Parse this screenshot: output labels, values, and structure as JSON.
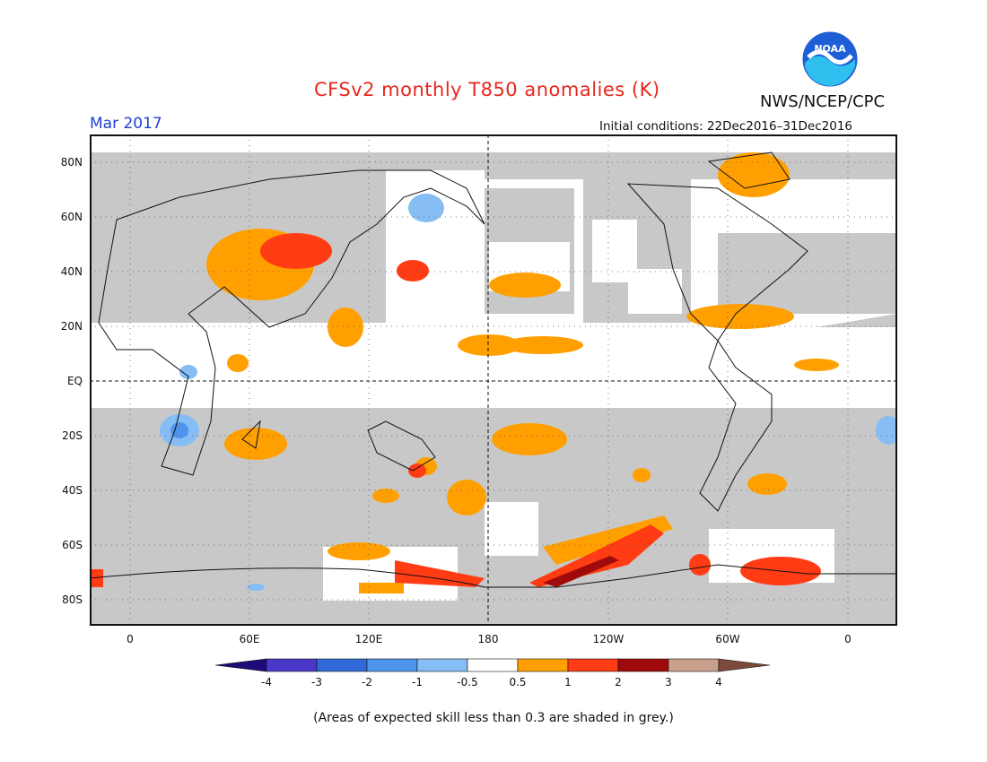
{
  "title": "CFSv2 monthly T850 anomalies (K)",
  "organization": "NWS/NCEP/CPC",
  "logo_text": "NOAA",
  "forecast_month": "Mar 2017",
  "initial_conditions": "Initial conditions: 22Dec2016–31Dec2016",
  "lat_labels": [
    "80N",
    "60N",
    "40N",
    "20N",
    "EQ",
    "20S",
    "40S",
    "60S",
    "80S"
  ],
  "lon_labels": [
    "0",
    "60E",
    "120E",
    "180",
    "120W",
    "60W",
    "0"
  ],
  "colorbar": {
    "labels": [
      "-4",
      "-3",
      "-2",
      "-1",
      "-0.5",
      "0.5",
      "1",
      "2",
      "3",
      "4"
    ],
    "colors": [
      "#1e0a78",
      "#4a38c8",
      "#2f6ad8",
      "#4f94ec",
      "#86bdf4",
      "#ffffff",
      "#ffa000",
      "#ff3c14",
      "#a00a0a",
      "#c8a08c",
      "#7a4a3a"
    ]
  },
  "note": "(Areas of expected skill less than 0.3 are shaded in grey.)",
  "colors": {
    "grey": "#c8c8c8",
    "orange": "#ffa000",
    "red": "#ff3c14",
    "darkred": "#a00a0a",
    "lightblue": "#86bdf4",
    "blue": "#4f94ec"
  }
}
